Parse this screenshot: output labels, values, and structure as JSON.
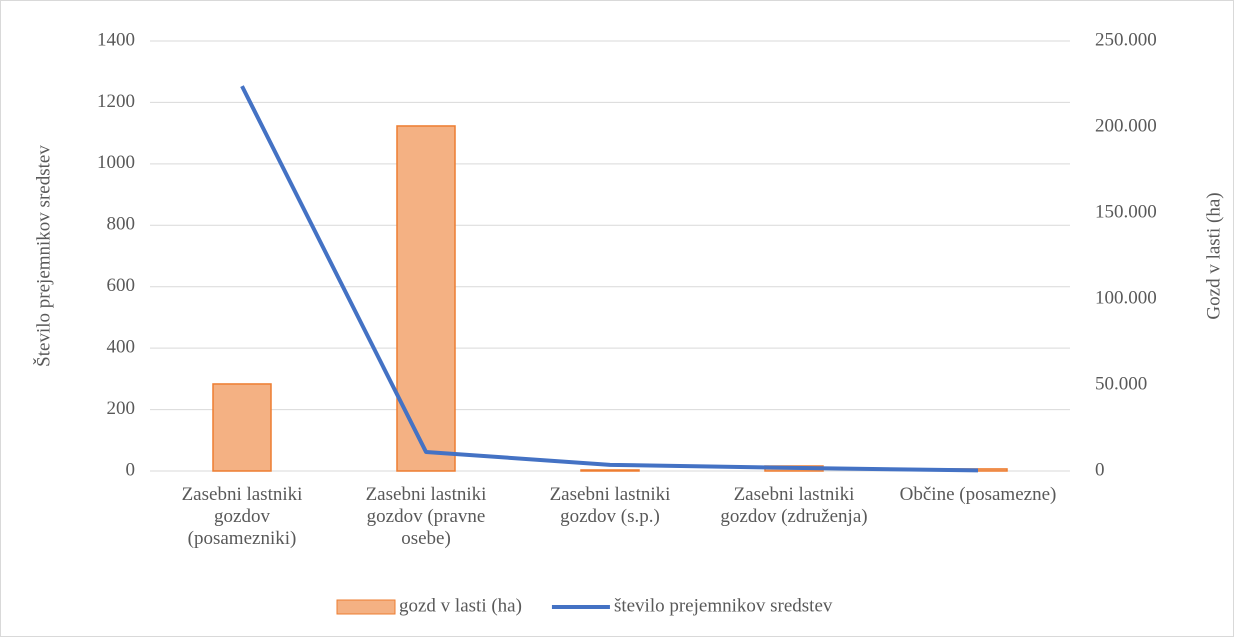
{
  "chart_data": {
    "type": "combo",
    "categories": [
      "Zasebni lastniki gozdov (posamezniki)",
      "Zasebni lastniki gozdov (pravne osebe)",
      "Zasebni lastniki gozdov (s.p.)",
      "Zasebni lastniki gozdov (združenja)",
      "Občine (posamezne)"
    ],
    "series": [
      {
        "name": "gozd v lasti (ha)",
        "type": "bar",
        "axis": "y2",
        "color": "#f4b183",
        "edge_color": "#ed7d31",
        "values": [
          50600,
          200600,
          600,
          2900,
          1200
        ]
      },
      {
        "name": "število prejemnikov sredstev",
        "type": "line",
        "color": "#4472c4",
        "values": [
          1253,
          62,
          20,
          10,
          2
        ]
      }
    ],
    "ylabel": "Število prejemnikov sredstev",
    "y2label": "Gozd v lasti (ha)",
    "ylim": [
      0,
      1400
    ],
    "yticks": [
      0,
      200,
      400,
      600,
      800,
      1000,
      1200,
      1400
    ],
    "y2lim": [
      0,
      250000
    ],
    "y2ticks": [
      0,
      {
        "value": 50000,
        "label": "50.000"
      },
      {
        "value": 100000,
        "label": "100.000"
      },
      {
        "value": 150000,
        "label": "150.000"
      },
      {
        "value": 200000,
        "label": "200.000"
      },
      {
        "value": 250000,
        "label": "250.000"
      }
    ],
    "grid": true,
    "legend": "bottom"
  }
}
